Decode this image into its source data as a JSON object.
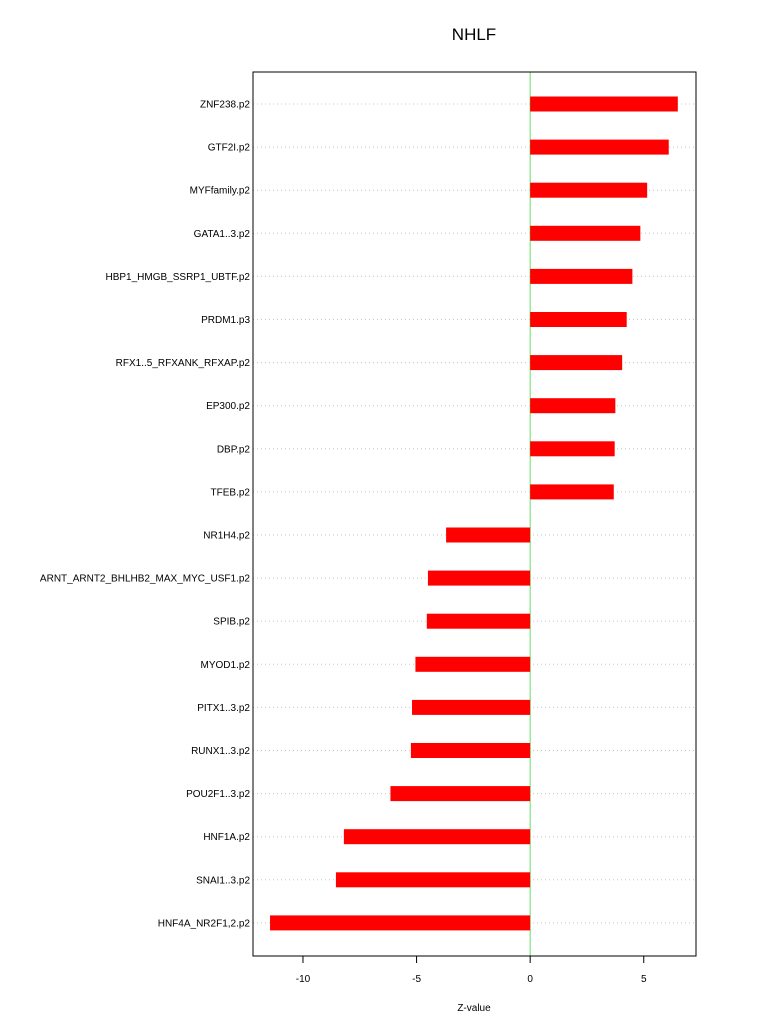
{
  "chart_data": {
    "type": "bar",
    "orientation": "horizontal",
    "title": "NHLF",
    "xlabel": "Z-value",
    "ylabel": "",
    "xlim": [
      -12.2,
      7.3
    ],
    "xticks": [
      -10,
      -5,
      0,
      5
    ],
    "grid": true,
    "reference_line_x": 0,
    "categories": [
      "ZNF238.p2",
      "GTF2I.p2",
      "MYFfamily.p2",
      "GATA1..3.p2",
      "HBP1_HMGB_SSRP1_UBTF.p2",
      "PRDM1.p3",
      "RFX1..5_RFXANK_RFXAP.p2",
      "EP300.p2",
      "DBP.p2",
      "TFEB.p2",
      "NR1H4.p2",
      "ARNT_ARNT2_BHLHB2_MAX_MYC_USF1.p2",
      "SPIB.p2",
      "MYOD1.p2",
      "PITX1..3.p2",
      "RUNX1..3.p2",
      "POU2F1..3.p2",
      "HNF1A.p2",
      "SNAI1..3.p2",
      "HNF4A_NR2F1,2.p2"
    ],
    "values": [
      6.5,
      6.1,
      5.15,
      4.85,
      4.5,
      4.25,
      4.05,
      3.75,
      3.72,
      3.68,
      -3.7,
      -4.5,
      -4.55,
      -5.05,
      -5.2,
      -5.25,
      -6.15,
      -8.2,
      -8.55,
      -11.45
    ],
    "colors": {
      "bar": "#ff0000",
      "zero_line": "#66dd66",
      "grid": "#c8c8c8",
      "axis": "#000000"
    }
  }
}
